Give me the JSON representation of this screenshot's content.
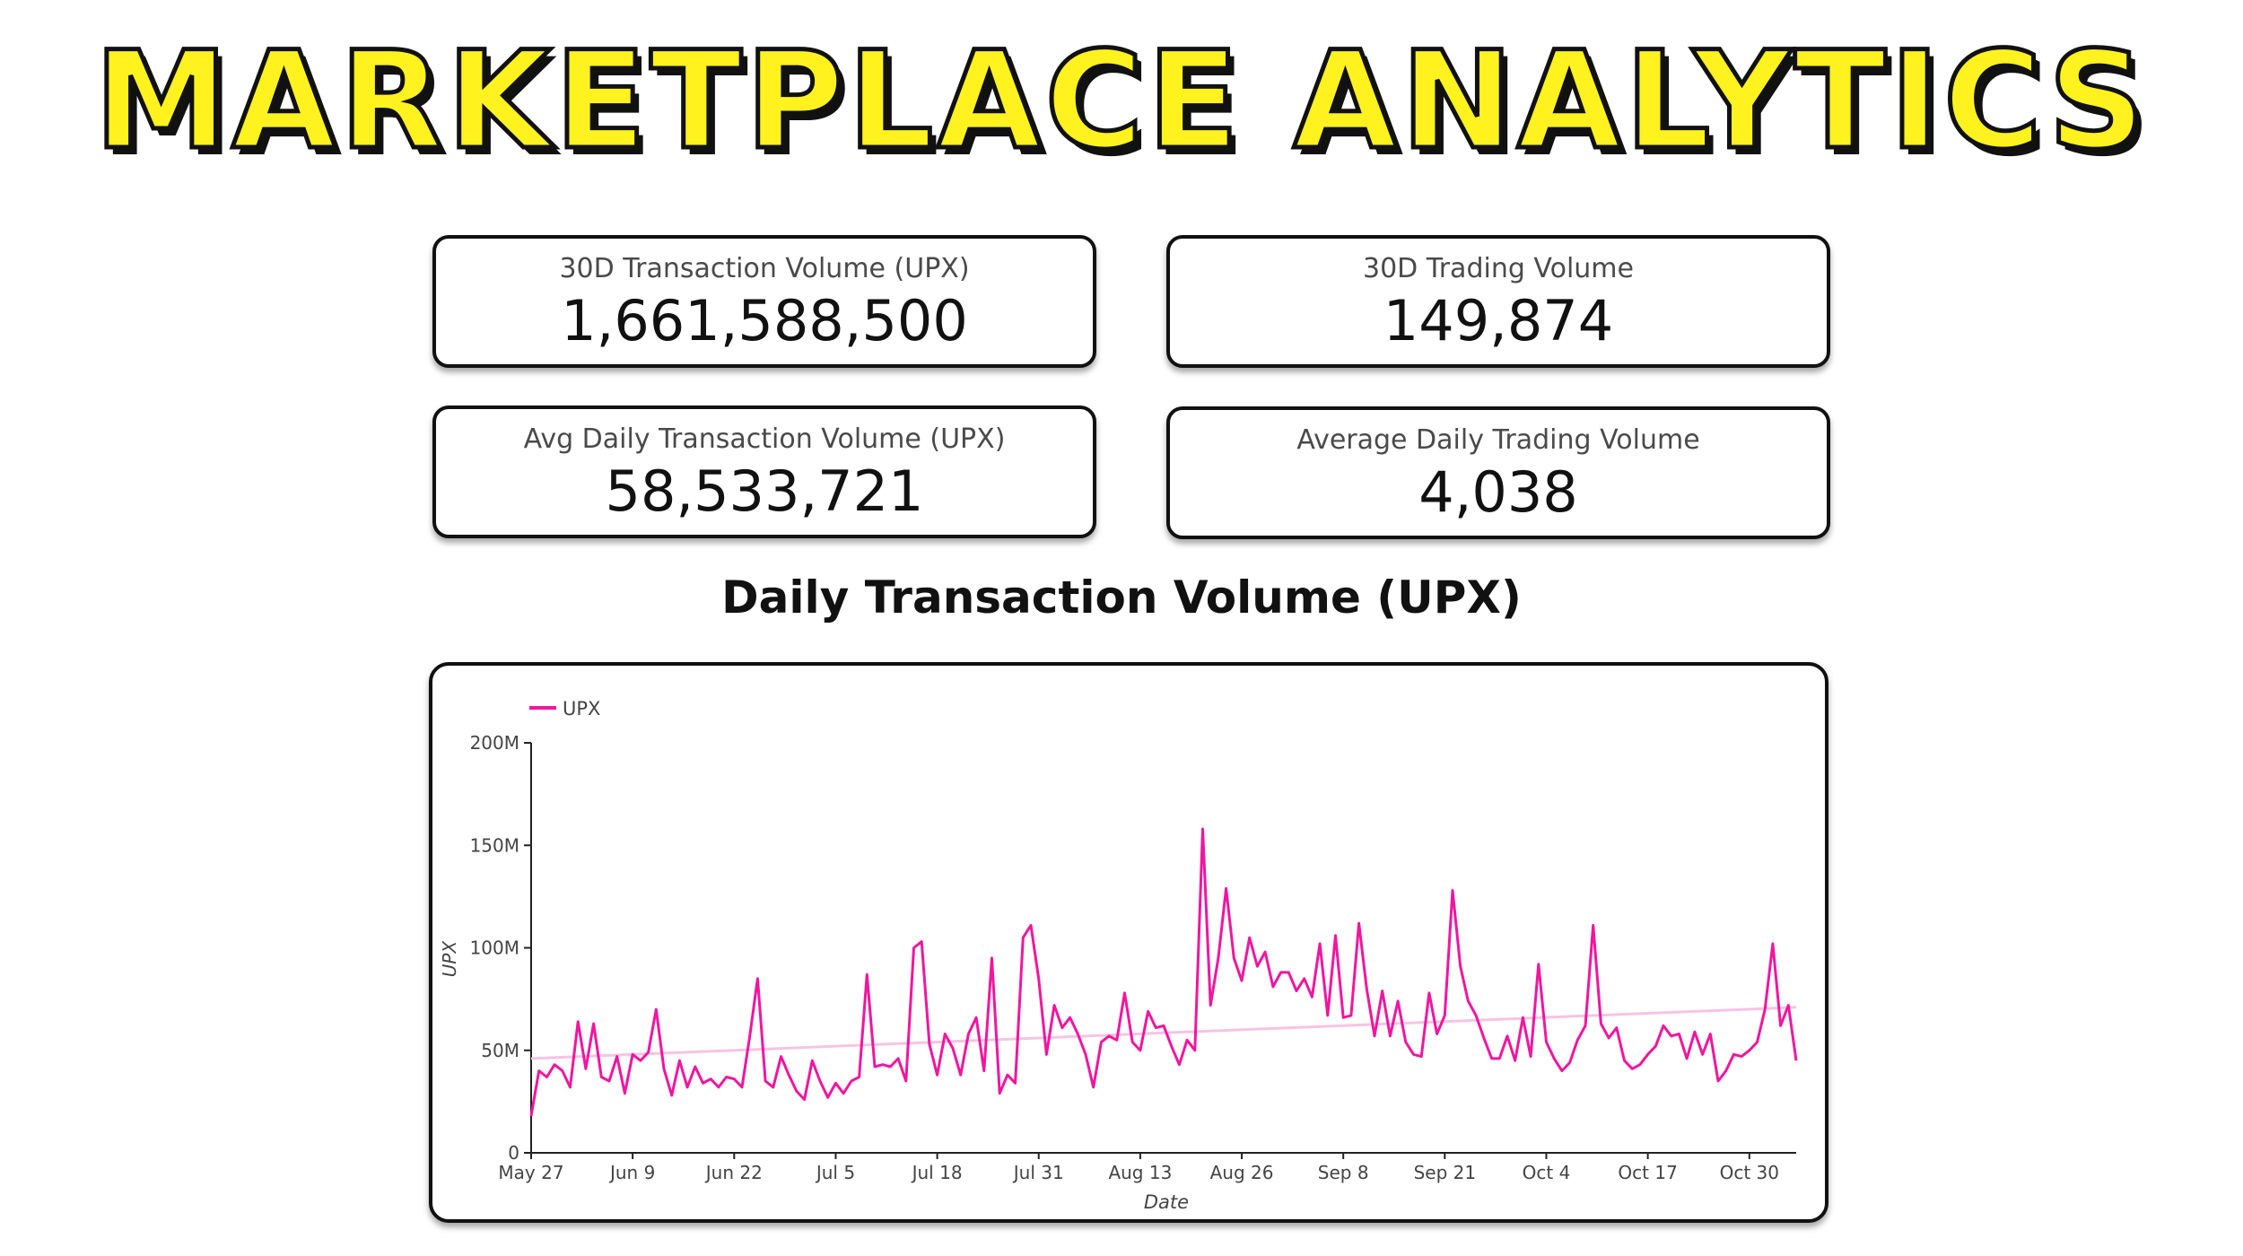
{
  "header": {
    "title": "MARKETPLACE ANALYTICS"
  },
  "stats": [
    {
      "label": "30D Transaction Volume (UPX)",
      "value": "1,661,588,500"
    },
    {
      "label": "30D Trading Volume",
      "value": "149,874"
    },
    {
      "label": "Avg Daily Transaction Volume (UPX)",
      "value": "58,533,721"
    },
    {
      "label": "Average Daily Trading Volume",
      "value": "4,038"
    }
  ],
  "colors": {
    "title_fill": "#fff21e",
    "series_line": "#f0169f",
    "trend_line": "#f7c3e4"
  },
  "chart_data": {
    "type": "line",
    "title": "Daily Transaction Volume (UPX)",
    "xlabel": "Date",
    "ylabel": "UPX",
    "legend": {
      "entries": [
        "UPX"
      ],
      "placement": "top-left"
    },
    "xticks": [
      "May 27",
      "Jun 9",
      "Jun 22",
      "Jul 5",
      "Jul 18",
      "Jul 31",
      "Aug 13",
      "Aug 26",
      "Sep 8",
      "Sep 21",
      "Oct 4",
      "Oct 17",
      "Oct 30"
    ],
    "yticks": [
      "0",
      "50M",
      "100M",
      "150M",
      "200M"
    ],
    "ylim": [
      0,
      200000000
    ],
    "x_start": "May 27",
    "grid": false,
    "series": [
      {
        "name": "UPX",
        "values": [
          18000000,
          40000000,
          37000000,
          43000000,
          40000000,
          32000000,
          64000000,
          41000000,
          63000000,
          37000000,
          35000000,
          47000000,
          29000000,
          48000000,
          45000000,
          49000000,
          70000000,
          41000000,
          28000000,
          45000000,
          32000000,
          42000000,
          34000000,
          36000000,
          32000000,
          37000000,
          36000000,
          32000000,
          57000000,
          85000000,
          35000000,
          32000000,
          47000000,
          38000000,
          30000000,
          26000000,
          45000000,
          35000000,
          27000000,
          34000000,
          29000000,
          35000000,
          37000000,
          87000000,
          42000000,
          43000000,
          42000000,
          46000000,
          35000000,
          100000000,
          103000000,
          53000000,
          38000000,
          58000000,
          51000000,
          38000000,
          58000000,
          66000000,
          40000000,
          95000000,
          29000000,
          38000000,
          34000000,
          105000000,
          111000000,
          85000000,
          48000000,
          72000000,
          61000000,
          66000000,
          58000000,
          48000000,
          32000000,
          54000000,
          57000000,
          55000000,
          78000000,
          54000000,
          50000000,
          69000000,
          61000000,
          62000000,
          52000000,
          43000000,
          55000000,
          50000000,
          158000000,
          72000000,
          95000000,
          129000000,
          95000000,
          84000000,
          105000000,
          91000000,
          98000000,
          81000000,
          88000000,
          88000000,
          79000000,
          85000000,
          76000000,
          102000000,
          67000000,
          106000000,
          66000000,
          67000000,
          112000000,
          80000000,
          57000000,
          79000000,
          57000000,
          74000000,
          54000000,
          48000000,
          47000000,
          78000000,
          58000000,
          67000000,
          128000000,
          91000000,
          74000000,
          67000000,
          56000000,
          46000000,
          46000000,
          57000000,
          45000000,
          66000000,
          47000000,
          92000000,
          54000000,
          46000000,
          40000000,
          44000000,
          55000000,
          62000000,
          111000000,
          63000000,
          56000000,
          61000000,
          45000000,
          41000000,
          43000000,
          48000000,
          52000000,
          62000000,
          57000000,
          58000000,
          46000000,
          59000000,
          48000000,
          58000000,
          35000000,
          40000000,
          48000000,
          47000000,
          50000000,
          54000000,
          70000000,
          102000000,
          62000000,
          72000000,
          45000000
        ]
      }
    ],
    "trendline": {
      "start": 46000000,
      "end": 71000000
    }
  }
}
